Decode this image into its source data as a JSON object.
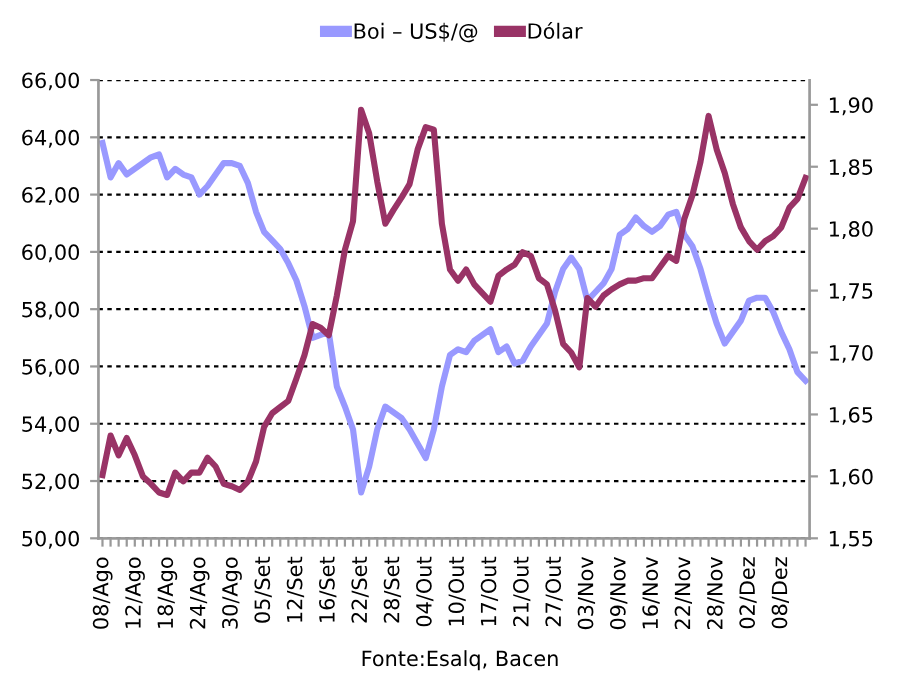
{
  "chart_data": {
    "type": "line",
    "categories": [
      "08/Ago",
      null,
      null,
      null,
      "12/Ago",
      null,
      null,
      null,
      "18/Ago",
      null,
      null,
      null,
      "24/Ago",
      null,
      null,
      null,
      "30/Ago",
      null,
      null,
      null,
      "05/Set",
      null,
      null,
      null,
      "12/Set",
      null,
      null,
      null,
      "16/Set",
      null,
      null,
      null,
      "22/Set",
      null,
      null,
      null,
      "28/Set",
      null,
      null,
      null,
      "04/Out",
      null,
      null,
      null,
      "10/Out",
      null,
      null,
      null,
      "17/Out",
      null,
      null,
      null,
      "21/Out",
      null,
      null,
      null,
      "27/Out",
      null,
      null,
      null,
      "03/Nov",
      null,
      null,
      null,
      "09/Nov",
      null,
      null,
      null,
      "16/Nov",
      null,
      null,
      null,
      "22/Nov",
      null,
      null,
      null,
      "28/Nov",
      null,
      null,
      null,
      "02/Dez",
      null,
      null,
      null,
      "08/Dez",
      null,
      null,
      null
    ],
    "series": [
      {
        "name": "Boi – US$/@",
        "color": "#9999ff",
        "values": [
          63.8,
          62.6,
          63.1,
          62.7,
          62.9,
          63.1,
          63.3,
          63.4,
          62.6,
          62.9,
          62.7,
          62.6,
          62.0,
          62.3,
          62.7,
          63.1,
          63.1,
          63.0,
          62.4,
          61.4,
          60.7,
          60.4,
          60.1,
          59.6,
          59.0,
          58.1,
          57.0,
          57.1,
          57.2,
          55.3,
          54.6,
          53.8,
          51.6,
          52.5,
          53.8,
          54.6,
          54.4,
          54.2,
          53.8,
          53.3,
          52.8,
          53.8,
          55.3,
          56.4,
          56.6,
          56.5,
          56.9,
          57.1,
          57.3,
          56.5,
          56.7,
          56.1,
          56.2,
          56.7,
          57.1,
          57.5,
          58.6,
          59.4,
          59.8,
          59.4,
          58.3,
          58.6,
          58.9,
          59.4,
          60.6,
          60.8,
          61.2,
          60.9,
          60.7,
          60.9,
          61.3,
          61.4,
          60.6,
          60.2,
          59.4,
          58.4,
          57.5,
          56.8,
          57.2,
          57.6,
          58.3,
          58.4,
          58.4,
          57.9,
          57.2,
          56.6,
          55.8,
          55.5
        ]
      },
      {
        "name": "Dólar",
        "color": "#993366",
        "axis": "y2",
        "values": [
          1.601,
          1.633,
          1.617,
          1.631,
          1.617,
          1.6,
          1.594,
          1.587,
          1.585,
          1.603,
          1.596,
          1.603,
          1.603,
          1.615,
          1.608,
          1.594,
          1.592,
          1.589,
          1.596,
          1.612,
          1.64,
          1.651,
          1.656,
          1.661,
          1.679,
          1.698,
          1.723,
          1.72,
          1.714,
          1.746,
          1.783,
          1.806,
          1.896,
          1.877,
          1.838,
          1.804,
          1.815,
          1.825,
          1.836,
          1.864,
          1.882,
          1.88,
          1.804,
          1.767,
          1.758,
          1.767,
          1.755,
          1.748,
          1.741,
          1.762,
          1.767,
          1.771,
          1.781,
          1.778,
          1.76,
          1.755,
          1.734,
          1.707,
          1.7,
          1.688,
          1.744,
          1.737,
          1.746,
          1.751,
          1.755,
          1.758,
          1.758,
          1.76,
          1.76,
          1.769,
          1.778,
          1.774,
          1.808,
          1.827,
          1.854,
          1.891,
          1.864,
          1.845,
          1.82,
          1.801,
          1.79,
          1.783,
          1.79,
          1.794,
          1.801,
          1.817,
          1.824,
          1.841
        ]
      }
    ],
    "ylim": [
      50,
      66
    ],
    "yticks": [
      {
        "value": 50,
        "label": "50,00"
      },
      {
        "value": 52,
        "label": "52,00"
      },
      {
        "value": 54,
        "label": "54,00"
      },
      {
        "value": 56,
        "label": "56,00"
      },
      {
        "value": 58,
        "label": "58,00"
      },
      {
        "value": 60,
        "label": "60,00"
      },
      {
        "value": 62,
        "label": "62,00"
      },
      {
        "value": 64,
        "label": "64,00"
      },
      {
        "value": 66,
        "label": "66,00"
      }
    ],
    "y2lim": [
      1.55,
      1.92
    ],
    "y2ticks": [
      {
        "value": 1.55,
        "label": "1,55"
      },
      {
        "value": 1.6,
        "label": "1,60"
      },
      {
        "value": 1.65,
        "label": "1,65"
      },
      {
        "value": 1.7,
        "label": "1,70"
      },
      {
        "value": 1.75,
        "label": "1,75"
      },
      {
        "value": 1.8,
        "label": "1,80"
      },
      {
        "value": 1.85,
        "label": "1,85"
      },
      {
        "value": 1.9,
        "label": "1,90"
      }
    ],
    "grid": "y",
    "legend": "top",
    "marker": "none",
    "line_style": "solid",
    "annotations": [
      "Fonte:Esalq, Bacen"
    ]
  }
}
